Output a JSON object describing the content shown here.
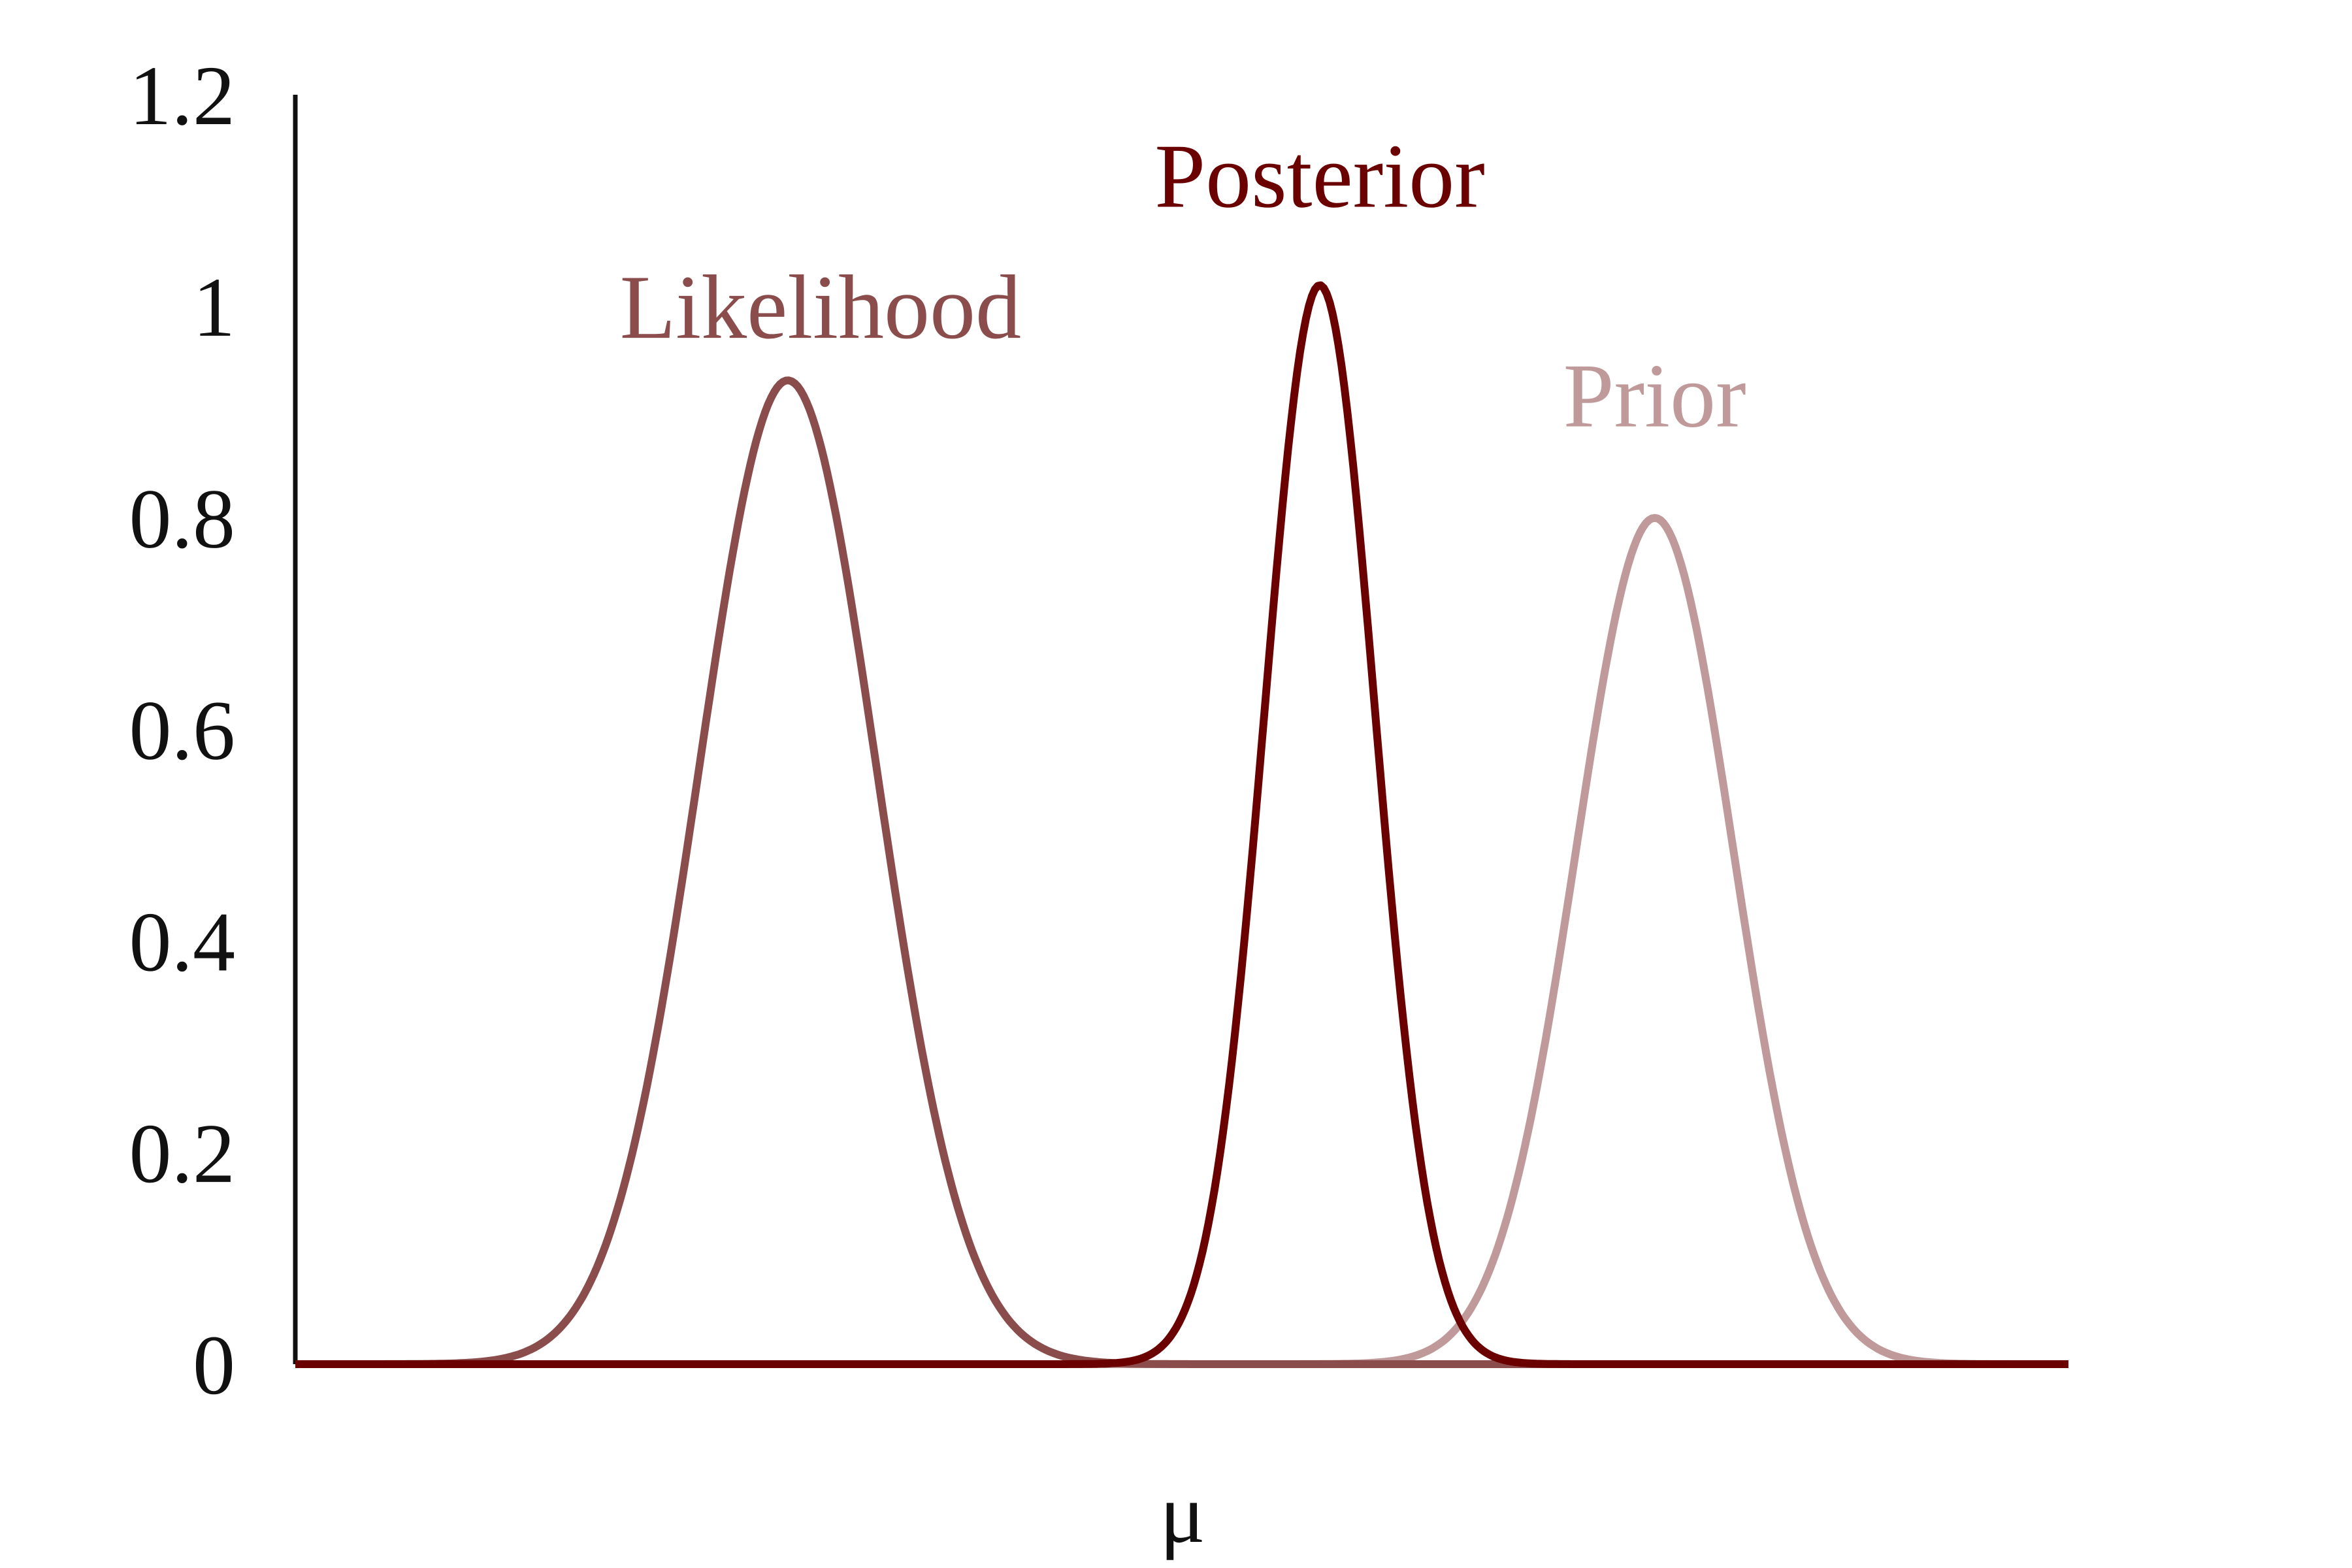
{
  "chart_data": {
    "type": "line",
    "xlabel": "μ",
    "ylabel": "",
    "xlim": [
      -1.5,
      7.5
    ],
    "ylim": [
      0,
      1.2
    ],
    "yticks": [
      0,
      0.2,
      0.4,
      0.6,
      0.8,
      1,
      1.2
    ],
    "ytick_labels": [
      "0",
      "0.2",
      "0.4",
      "0.6",
      "0.8",
      "1",
      "1.2"
    ],
    "grid": false,
    "legend": "none",
    "series": [
      {
        "name": "Likelihood",
        "color": "#8b4c4c",
        "mean": 1.0,
        "sd": 0.45,
        "peak": 0.93
      },
      {
        "name": "Posterior",
        "color": "#6a0000",
        "mean": 3.7,
        "sd": 0.28,
        "peak": 1.02
      },
      {
        "name": "Prior",
        "color": "#c09a9a",
        "mean": 5.4,
        "sd": 0.4,
        "peak": 0.8
      }
    ]
  }
}
